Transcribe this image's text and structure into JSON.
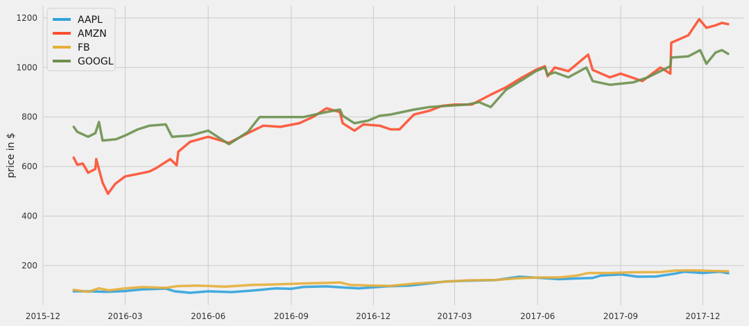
{
  "chart_data": {
    "type": "line",
    "title": "",
    "xlabel": "",
    "ylabel": "price in $",
    "xlim": [
      "2015-12-01",
      "2018-01-15"
    ],
    "ylim": [
      40,
      1250
    ],
    "grid": true,
    "legend_position": "top-left",
    "x_ticks": [
      "2015-12",
      "2016-03",
      "2016-06",
      "2016-09",
      "2016-12",
      "2017-03",
      "2017-06",
      "2017-09",
      "2017-12"
    ],
    "y_ticks": [
      200,
      400,
      600,
      800,
      1000,
      1200
    ],
    "series": [
      {
        "name": "AAPL",
        "color": "#30a2da",
        "points": [
          [
            "2016-01-04",
            96
          ],
          [
            "2016-01-20",
            96
          ],
          [
            "2016-02-10",
            94
          ],
          [
            "2016-03-01",
            97
          ],
          [
            "2016-03-20",
            104
          ],
          [
            "2016-04-15",
            107
          ],
          [
            "2016-04-25",
            96
          ],
          [
            "2016-05-12",
            90
          ],
          [
            "2016-06-01",
            96
          ],
          [
            "2016-06-27",
            93
          ],
          [
            "2016-07-20",
            99
          ],
          [
            "2016-08-15",
            108
          ],
          [
            "2016-09-01",
            106
          ],
          [
            "2016-09-15",
            114
          ],
          [
            "2016-10-10",
            116
          ],
          [
            "2016-11-01",
            111
          ],
          [
            "2016-11-15",
            108
          ],
          [
            "2016-12-15",
            116
          ],
          [
            "2017-01-10",
            119
          ],
          [
            "2017-02-01",
            128
          ],
          [
            "2017-02-20",
            136
          ],
          [
            "2017-03-15",
            139
          ],
          [
            "2017-04-15",
            141
          ],
          [
            "2017-05-12",
            155
          ],
          [
            "2017-06-09",
            149
          ],
          [
            "2017-06-25",
            145
          ],
          [
            "2017-07-15",
            148
          ],
          [
            "2017-08-01",
            150
          ],
          [
            "2017-08-10",
            160
          ],
          [
            "2017-09-01",
            164
          ],
          [
            "2017-09-20",
            155
          ],
          [
            "2017-10-10",
            156
          ],
          [
            "2017-11-01",
            168
          ],
          [
            "2017-11-10",
            175
          ],
          [
            "2017-12-01",
            170
          ],
          [
            "2017-12-20",
            175
          ],
          [
            "2017-12-29",
            169
          ]
        ]
      },
      {
        "name": "AMZN",
        "color": "#fc4f30",
        "points": [
          [
            "2016-01-04",
            636
          ],
          [
            "2016-01-08",
            607
          ],
          [
            "2016-01-14",
            612
          ],
          [
            "2016-01-20",
            575
          ],
          [
            "2016-01-28",
            590
          ],
          [
            "2016-01-29",
            630
          ],
          [
            "2016-02-05",
            535
          ],
          [
            "2016-02-11",
            490
          ],
          [
            "2016-02-19",
            530
          ],
          [
            "2016-03-01",
            560
          ],
          [
            "2016-03-15",
            570
          ],
          [
            "2016-03-28",
            580
          ],
          [
            "2016-04-05",
            595
          ],
          [
            "2016-04-20",
            630
          ],
          [
            "2016-04-27",
            605
          ],
          [
            "2016-04-29",
            660
          ],
          [
            "2016-05-12",
            700
          ],
          [
            "2016-06-01",
            720
          ],
          [
            "2016-06-24",
            695
          ],
          [
            "2016-07-15",
            735
          ],
          [
            "2016-08-01",
            765
          ],
          [
            "2016-08-20",
            760
          ],
          [
            "2016-09-10",
            775
          ],
          [
            "2016-09-25",
            800
          ],
          [
            "2016-10-10",
            835
          ],
          [
            "2016-10-25",
            820
          ],
          [
            "2016-10-28",
            775
          ],
          [
            "2016-11-10",
            745
          ],
          [
            "2016-11-20",
            770
          ],
          [
            "2016-12-08",
            765
          ],
          [
            "2016-12-20",
            750
          ],
          [
            "2016-12-30",
            750
          ],
          [
            "2017-01-15",
            810
          ],
          [
            "2017-02-01",
            825
          ],
          [
            "2017-02-15",
            845
          ],
          [
            "2017-03-01",
            850
          ],
          [
            "2017-03-20",
            850
          ],
          [
            "2017-04-10",
            890
          ],
          [
            "2017-04-27",
            920
          ],
          [
            "2017-05-15",
            960
          ],
          [
            "2017-05-30",
            990
          ],
          [
            "2017-06-09",
            1005
          ],
          [
            "2017-06-12",
            965
          ],
          [
            "2017-06-20",
            1000
          ],
          [
            "2017-07-05",
            985
          ],
          [
            "2017-07-27",
            1052
          ],
          [
            "2017-08-01",
            990
          ],
          [
            "2017-08-20",
            960
          ],
          [
            "2017-09-01",
            975
          ],
          [
            "2017-09-25",
            945
          ],
          [
            "2017-10-15",
            1000
          ],
          [
            "2017-10-26",
            975
          ],
          [
            "2017-10-27",
            1100
          ],
          [
            "2017-11-15",
            1130
          ],
          [
            "2017-11-27",
            1195
          ],
          [
            "2017-12-05",
            1160
          ],
          [
            "2017-12-15",
            1170
          ],
          [
            "2017-12-22",
            1180
          ],
          [
            "2017-12-29",
            1175
          ]
        ]
      },
      {
        "name": "FB",
        "color": "#e5ae38",
        "points": [
          [
            "2016-01-04",
            102
          ],
          [
            "2016-01-20",
            94
          ],
          [
            "2016-02-01",
            108
          ],
          [
            "2016-02-12",
            100
          ],
          [
            "2016-03-01",
            108
          ],
          [
            "2016-03-20",
            113
          ],
          [
            "2016-04-15",
            110
          ],
          [
            "2016-04-28",
            117
          ],
          [
            "2016-05-20",
            119
          ],
          [
            "2016-06-20",
            115
          ],
          [
            "2016-07-20",
            122
          ],
          [
            "2016-08-15",
            124
          ],
          [
            "2016-09-15",
            128
          ],
          [
            "2016-10-10",
            130
          ],
          [
            "2016-10-25",
            132
          ],
          [
            "2016-11-05",
            122
          ],
          [
            "2016-11-20",
            120
          ],
          [
            "2016-12-20",
            118
          ],
          [
            "2017-01-15",
            127
          ],
          [
            "2017-02-15",
            134
          ],
          [
            "2017-03-15",
            140
          ],
          [
            "2017-04-15",
            142
          ],
          [
            "2017-05-15",
            150
          ],
          [
            "2017-06-09",
            152
          ],
          [
            "2017-06-25",
            152
          ],
          [
            "2017-07-15",
            160
          ],
          [
            "2017-07-27",
            170
          ],
          [
            "2017-08-20",
            170
          ],
          [
            "2017-09-15",
            173
          ],
          [
            "2017-10-15",
            174
          ],
          [
            "2017-11-01",
            180
          ],
          [
            "2017-11-20",
            181
          ],
          [
            "2017-12-15",
            178
          ],
          [
            "2017-12-29",
            177
          ]
        ]
      },
      {
        "name": "GOOGL",
        "color": "#6d904f",
        "points": [
          [
            "2016-01-04",
            760
          ],
          [
            "2016-01-08",
            740
          ],
          [
            "2016-01-20",
            720
          ],
          [
            "2016-01-28",
            735
          ],
          [
            "2016-02-01",
            780
          ],
          [
            "2016-02-05",
            705
          ],
          [
            "2016-02-20",
            710
          ],
          [
            "2016-03-01",
            725
          ],
          [
            "2016-03-15",
            750
          ],
          [
            "2016-03-28",
            765
          ],
          [
            "2016-04-15",
            770
          ],
          [
            "2016-04-22",
            720
          ],
          [
            "2016-05-12",
            725
          ],
          [
            "2016-06-01",
            745
          ],
          [
            "2016-06-24",
            690
          ],
          [
            "2016-07-15",
            740
          ],
          [
            "2016-07-28",
            800
          ],
          [
            "2016-08-20",
            800
          ],
          [
            "2016-09-15",
            800
          ],
          [
            "2016-10-10",
            820
          ],
          [
            "2016-10-25",
            830
          ],
          [
            "2016-10-28",
            805
          ],
          [
            "2016-11-10",
            775
          ],
          [
            "2016-11-25",
            785
          ],
          [
            "2016-12-08",
            805
          ],
          [
            "2016-12-20",
            810
          ],
          [
            "2017-01-15",
            830
          ],
          [
            "2017-02-01",
            840
          ],
          [
            "2017-02-20",
            845
          ],
          [
            "2017-03-15",
            850
          ],
          [
            "2017-03-28",
            860
          ],
          [
            "2017-04-10",
            840
          ],
          [
            "2017-04-27",
            910
          ],
          [
            "2017-05-15",
            950
          ],
          [
            "2017-05-30",
            985
          ],
          [
            "2017-06-09",
            1000
          ],
          [
            "2017-06-12",
            970
          ],
          [
            "2017-06-20",
            980
          ],
          [
            "2017-07-05",
            960
          ],
          [
            "2017-07-25",
            1000
          ],
          [
            "2017-08-01",
            945
          ],
          [
            "2017-08-20",
            930
          ],
          [
            "2017-09-15",
            940
          ],
          [
            "2017-10-01",
            960
          ],
          [
            "2017-10-26",
            1005
          ],
          [
            "2017-10-27",
            1040
          ],
          [
            "2017-11-15",
            1045
          ],
          [
            "2017-11-28",
            1070
          ],
          [
            "2017-12-05",
            1015
          ],
          [
            "2017-12-15",
            1060
          ],
          [
            "2017-12-22",
            1070
          ],
          [
            "2017-12-29",
            1055
          ]
        ]
      }
    ]
  }
}
